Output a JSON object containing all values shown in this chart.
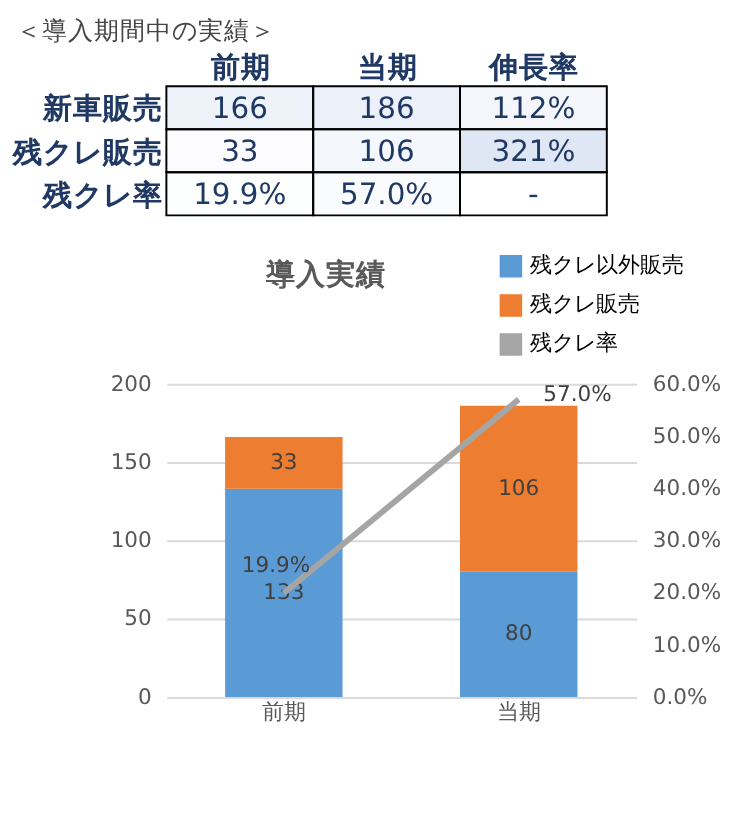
{
  "chart_data": [
    {
      "type": "heatmap",
      "title": "＜導入期間中の実績＞",
      "categories": [
        "前期",
        "当期",
        "伸長率"
      ],
      "y_categories": [
        "新車販売",
        "残クレ販売",
        "残クレ率"
      ],
      "cells": [
        [
          166,
          186,
          112
        ],
        [
          33,
          106,
          321
        ],
        [
          19.9,
          57.0,
          null
        ]
      ],
      "cell_labels": [
        [
          "166",
          "186",
          "112%"
        ],
        [
          "33",
          "106",
          "321%"
        ],
        [
          "19.9%",
          "57.0%",
          "-"
        ]
      ]
    },
    {
      "type": "bar",
      "title": "導入実績",
      "stacked": true,
      "categories": [
        "前期",
        "当期"
      ],
      "series": [
        {
          "name": "残クレ以外販売",
          "color": "#5b9bd5",
          "values": [
            133,
            80
          ]
        },
        {
          "name": "残クレ販売",
          "color": "#ed7d31",
          "values": [
            33,
            106
          ]
        },
        {
          "name": "残クレ率",
          "type": "line",
          "axis": "y2",
          "color": "#a5a5a5",
          "values": [
            19.9,
            57.0
          ],
          "value_labels": [
            "19.9%",
            "57.0%"
          ]
        }
      ],
      "ylim": [
        0,
        200
      ],
      "yticks": [
        0,
        50,
        100,
        150,
        200
      ],
      "y2lim": [
        0,
        60
      ],
      "y2ticks": [
        {
          "value": 0,
          "label": "0.0%"
        },
        {
          "value": 10,
          "label": "10.0%"
        },
        {
          "value": 20,
          "label": "20.0%"
        },
        {
          "value": 30,
          "label": "30.0%"
        },
        {
          "value": 40,
          "label": "40.0%"
        },
        {
          "value": 50,
          "label": "50.0%"
        },
        {
          "value": 60,
          "label": "60.0%"
        }
      ],
      "data_labels": true,
      "grid": "y",
      "legend": "top right"
    }
  ]
}
